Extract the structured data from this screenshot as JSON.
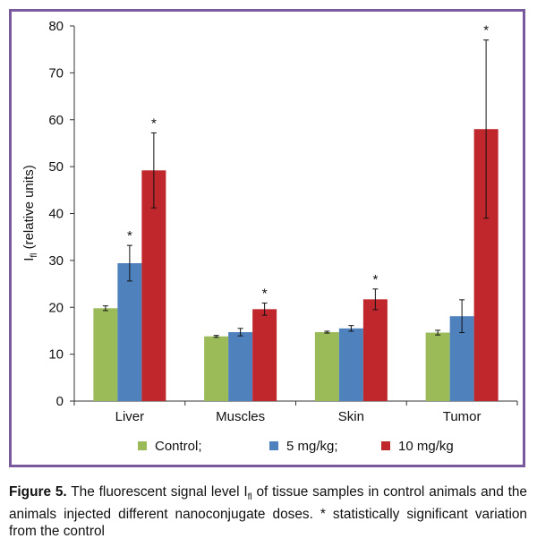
{
  "chart_data": {
    "type": "bar",
    "categories": [
      "Liver",
      "Muscles",
      "Skin",
      "Tumor"
    ],
    "series": [
      {
        "name": "Control;",
        "color": "#9bbb59",
        "values": [
          19.8,
          13.8,
          14.7,
          14.6
        ],
        "errors": [
          0.5,
          0.2,
          0.2,
          0.5
        ],
        "significant": [
          false,
          false,
          false,
          false
        ]
      },
      {
        "name": "5 mg/kg;",
        "color": "#4f81bd",
        "values": [
          29.4,
          14.7,
          15.5,
          18.1
        ],
        "errors": [
          3.8,
          0.8,
          0.6,
          3.5
        ],
        "significant": [
          true,
          false,
          false,
          false
        ]
      },
      {
        "name": "10 mg/kg",
        "color": "#c0272d",
        "values": [
          49.2,
          19.6,
          21.7,
          58.0
        ],
        "errors": [
          8.0,
          1.3,
          2.2,
          19.0
        ],
        "significant": [
          true,
          true,
          true,
          true
        ]
      }
    ],
    "ylim": [
      0,
      80
    ],
    "yticks": [
      "0",
      "10",
      "20",
      "30",
      "40",
      "50",
      "60",
      "70",
      "80"
    ],
    "ylabel_main": "I",
    "ylabel_sub": "fl",
    "ylabel_rest": " (relative units)",
    "significance_marker": "*",
    "legend_position": "bottom"
  },
  "caption": {
    "label": "Figure 5.",
    "text_before_sub": " The fluorescent signal level I",
    "sub": "fl",
    "text_after_sub": " of tissue samples in control animals and the animals injected different nanoconjugate doses. * statistically significant variation from the control"
  }
}
